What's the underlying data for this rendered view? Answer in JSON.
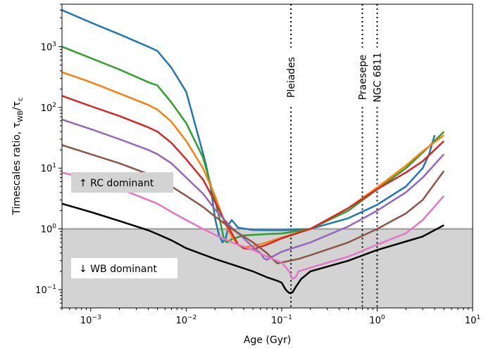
{
  "chart_data": {
    "type": "line",
    "xlabel": "Age (Gyr)",
    "ylabel_main": "Timescales ratio, τ",
    "ylabel_sub1": "WB",
    "ylabel_slash": "/τ",
    "ylabel_sub2": "c",
    "x_scale": "log",
    "y_scale": "log",
    "xlim": [
      0.0005,
      10
    ],
    "ylim": [
      0.05,
      5000
    ],
    "x_ticks": [
      {
        "value": 0.001,
        "base": "10",
        "exp": "−3"
      },
      {
        "value": 0.01,
        "base": "10",
        "exp": "−2"
      },
      {
        "value": 0.1,
        "base": "10",
        "exp": "−1"
      },
      {
        "value": 1,
        "base": "10",
        "exp": "0"
      },
      {
        "value": 10,
        "base": "10",
        "exp": "1"
      }
    ],
    "y_ticks": [
      {
        "value": 0.1,
        "base": "10",
        "exp": "−1"
      },
      {
        "value": 1,
        "base": "10",
        "exp": "0"
      },
      {
        "value": 10,
        "base": "10",
        "exp": "1"
      },
      {
        "value": 100,
        "base": "10",
        "exp": "2"
      },
      {
        "value": 1000,
        "base": "10",
        "exp": "3"
      }
    ],
    "threshold": 1,
    "regions": {
      "rc_label": "↑  RC dominant",
      "wb_label": "↓  WB dominant",
      "wb_fill": "#d3d3d3",
      "threshold_color": "#999999"
    },
    "clusters": [
      {
        "name": "Pleiades",
        "age": 0.125
      },
      {
        "name": "Praesepe",
        "age": 0.7
      },
      {
        "name": "NGC 6811",
        "age": 1.0
      }
    ],
    "series": [
      {
        "color": "#1f77b4",
        "points": [
          [
            0.0005,
            4000
          ],
          [
            0.001,
            2500
          ],
          [
            0.002,
            1600
          ],
          [
            0.004,
            1000
          ],
          [
            0.005,
            850
          ],
          [
            0.007,
            450
          ],
          [
            0.01,
            180
          ],
          [
            0.013,
            40
          ],
          [
            0.016,
            12
          ],
          [
            0.018,
            5
          ],
          [
            0.02,
            1.5
          ],
          [
            0.022,
            0.8
          ],
          [
            0.024,
            0.6
          ],
          [
            0.026,
            0.7
          ],
          [
            0.028,
            1.2
          ],
          [
            0.03,
            1.4
          ],
          [
            0.035,
            1.05
          ],
          [
            0.05,
            0.96
          ],
          [
            0.1,
            0.95
          ],
          [
            0.2,
            1.0
          ],
          [
            0.5,
            1.5
          ],
          [
            1,
            2.5
          ],
          [
            2,
            5
          ],
          [
            3,
            10
          ],
          [
            3.5,
            17
          ],
          [
            4,
            35
          ]
        ]
      },
      {
        "color": "#2ca02c",
        "points": [
          [
            0.0005,
            1000
          ],
          [
            0.001,
            650
          ],
          [
            0.002,
            420
          ],
          [
            0.004,
            260
          ],
          [
            0.005,
            230
          ],
          [
            0.007,
            120
          ],
          [
            0.01,
            55
          ],
          [
            0.015,
            15
          ],
          [
            0.02,
            3
          ],
          [
            0.023,
            1.2
          ],
          [
            0.025,
            0.65
          ],
          [
            0.027,
            0.6
          ],
          [
            0.03,
            0.68
          ],
          [
            0.04,
            0.78
          ],
          [
            0.07,
            0.82
          ],
          [
            0.1,
            0.84
          ],
          [
            0.2,
            1.0
          ],
          [
            0.5,
            2.0
          ],
          [
            1,
            4.5
          ],
          [
            2,
            10
          ],
          [
            3,
            18
          ],
          [
            5,
            40
          ]
        ]
      },
      {
        "color": "#ff7f0e",
        "points": [
          [
            0.0005,
            380
          ],
          [
            0.001,
            260
          ],
          [
            0.002,
            170
          ],
          [
            0.004,
            110
          ],
          [
            0.005,
            92
          ],
          [
            0.007,
            58
          ],
          [
            0.01,
            28
          ],
          [
            0.015,
            10
          ],
          [
            0.02,
            3.5
          ],
          [
            0.025,
            1.3
          ],
          [
            0.03,
            0.75
          ],
          [
            0.035,
            0.55
          ],
          [
            0.04,
            0.5
          ],
          [
            0.05,
            0.52
          ],
          [
            0.07,
            0.6
          ],
          [
            0.1,
            0.72
          ],
          [
            0.2,
            1.0
          ],
          [
            0.5,
            2.2
          ],
          [
            1,
            4.8
          ],
          [
            2,
            11
          ],
          [
            3,
            19
          ],
          [
            5,
            35
          ]
        ]
      },
      {
        "color": "#d62728",
        "points": [
          [
            0.0005,
            155
          ],
          [
            0.001,
            105
          ],
          [
            0.002,
            72
          ],
          [
            0.004,
            47
          ],
          [
            0.005,
            40
          ],
          [
            0.007,
            26
          ],
          [
            0.01,
            14
          ],
          [
            0.015,
            6.5
          ],
          [
            0.02,
            2.8
          ],
          [
            0.025,
            1.4
          ],
          [
            0.03,
            0.85
          ],
          [
            0.035,
            0.55
          ],
          [
            0.04,
            0.48
          ],
          [
            0.05,
            0.46
          ],
          [
            0.07,
            0.55
          ],
          [
            0.1,
            0.7
          ],
          [
            0.2,
            1.0
          ],
          [
            0.5,
            2.2
          ],
          [
            1,
            4.5
          ],
          [
            2,
            8.5
          ],
          [
            3,
            13
          ],
          [
            5,
            28
          ]
        ]
      },
      {
        "color": "#9467bd",
        "points": [
          [
            0.0005,
            63
          ],
          [
            0.001,
            44
          ],
          [
            0.002,
            30
          ],
          [
            0.004,
            20
          ],
          [
            0.005,
            17
          ],
          [
            0.007,
            12
          ],
          [
            0.01,
            7
          ],
          [
            0.015,
            3.8
          ],
          [
            0.02,
            2.1
          ],
          [
            0.03,
            1.05
          ],
          [
            0.04,
            0.7
          ],
          [
            0.05,
            0.5
          ],
          [
            0.06,
            0.4
          ],
          [
            0.065,
            0.33
          ],
          [
            0.07,
            0.31
          ],
          [
            0.08,
            0.35
          ],
          [
            0.1,
            0.42
          ],
          [
            0.2,
            0.6
          ],
          [
            0.5,
            1.1
          ],
          [
            1,
            2.0
          ],
          [
            2,
            4
          ],
          [
            3,
            7
          ],
          [
            5,
            17
          ]
        ]
      },
      {
        "color": "#8c564b",
        "points": [
          [
            0.0005,
            24
          ],
          [
            0.001,
            17
          ],
          [
            0.002,
            12
          ],
          [
            0.004,
            8
          ],
          [
            0.005,
            7
          ],
          [
            0.007,
            5
          ],
          [
            0.01,
            3.5
          ],
          [
            0.015,
            2.3
          ],
          [
            0.02,
            1.6
          ],
          [
            0.03,
            1.0
          ],
          [
            0.05,
            0.6
          ],
          [
            0.07,
            0.4
          ],
          [
            0.08,
            0.32
          ],
          [
            0.09,
            0.27
          ],
          [
            0.1,
            0.28
          ],
          [
            0.15,
            0.32
          ],
          [
            0.2,
            0.37
          ],
          [
            0.5,
            0.6
          ],
          [
            1,
            1.0
          ],
          [
            2,
            1.8
          ],
          [
            3,
            3.0
          ],
          [
            5,
            9
          ]
        ]
      },
      {
        "color": "#e377c2",
        "points": [
          [
            0.0005,
            8.5
          ],
          [
            0.001,
            6.5
          ],
          [
            0.002,
            4.6
          ],
          [
            0.004,
            3.0
          ],
          [
            0.005,
            2.6
          ],
          [
            0.007,
            1.9
          ],
          [
            0.01,
            1.4
          ],
          [
            0.015,
            1.0
          ],
          [
            0.02,
            0.8
          ],
          [
            0.03,
            0.6
          ],
          [
            0.05,
            0.45
          ],
          [
            0.07,
            0.35
          ],
          [
            0.1,
            0.28
          ],
          [
            0.12,
            0.2
          ],
          [
            0.13,
            0.15
          ],
          [
            0.14,
            0.16
          ],
          [
            0.15,
            0.2
          ],
          [
            0.2,
            0.23
          ],
          [
            0.5,
            0.35
          ],
          [
            1,
            0.55
          ],
          [
            2,
            0.85
          ],
          [
            3,
            1.4
          ],
          [
            5,
            3.5
          ]
        ]
      },
      {
        "color": "#000000",
        "points": [
          [
            0.0005,
            2.6
          ],
          [
            0.001,
            1.9
          ],
          [
            0.002,
            1.35
          ],
          [
            0.004,
            0.95
          ],
          [
            0.005,
            0.82
          ],
          [
            0.007,
            0.65
          ],
          [
            0.01,
            0.48
          ],
          [
            0.015,
            0.38
          ],
          [
            0.02,
            0.32
          ],
          [
            0.03,
            0.26
          ],
          [
            0.05,
            0.2
          ],
          [
            0.07,
            0.16
          ],
          [
            0.09,
            0.14
          ],
          [
            0.1,
            0.13
          ],
          [
            0.11,
            0.1
          ],
          [
            0.12,
            0.088
          ],
          [
            0.13,
            0.09
          ],
          [
            0.14,
            0.11
          ],
          [
            0.16,
            0.15
          ],
          [
            0.2,
            0.2
          ],
          [
            0.5,
            0.3
          ],
          [
            1,
            0.45
          ],
          [
            2,
            0.62
          ],
          [
            3,
            0.75
          ],
          [
            5,
            1.15
          ]
        ]
      }
    ]
  }
}
